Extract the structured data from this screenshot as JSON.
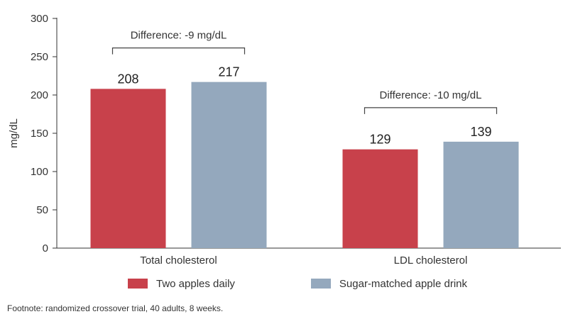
{
  "chart_data": {
    "type": "bar",
    "categories": [
      "Total cholesterol",
      "LDL cholesterol"
    ],
    "series": [
      {
        "name": "Two apples daily",
        "values": [
          208,
          129
        ],
        "color": "#c8414b"
      },
      {
        "name": "Sugar-matched apple drink",
        "values": [
          217,
          139
        ],
        "color": "#94a8bd"
      }
    ],
    "ylabel": "mg/dL",
    "xlabel": "",
    "ylim": [
      0,
      300
    ],
    "yticks": [
      0,
      50,
      100,
      150,
      200,
      250,
      300
    ],
    "grid": false,
    "legend_position": "bottom",
    "annotations": [
      {
        "text": "Difference: -9 mg/dL",
        "category": "Total cholesterol"
      },
      {
        "text": "Difference: -10 mg/dL",
        "category": "LDL cholesterol"
      }
    ]
  },
  "footnote": "Footnote: randomized crossover trial, 40 adults, 8 weeks."
}
